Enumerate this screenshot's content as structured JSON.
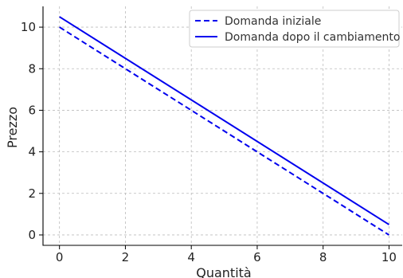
{
  "chart_data": {
    "type": "line",
    "xlabel": "Quantità",
    "ylabel": "Prezzo",
    "xlim": [
      -0.5,
      10.4
    ],
    "ylim": [
      -0.5,
      11.0
    ],
    "xticks": [
      0,
      2,
      4,
      6,
      8,
      10
    ],
    "yticks": [
      0,
      2,
      4,
      6,
      8,
      10
    ],
    "grid": true,
    "legend_position": "top-right",
    "series": [
      {
        "name": "Domanda iniziale",
        "x": [
          0,
          10
        ],
        "y": [
          10,
          0
        ],
        "color": "#0000ee",
        "style": "dashed"
      },
      {
        "name": "Domanda dopo il cambiamento",
        "x": [
          0,
          10
        ],
        "y": [
          10.5,
          0.5
        ],
        "color": "#0000ee",
        "style": "solid"
      }
    ]
  }
}
